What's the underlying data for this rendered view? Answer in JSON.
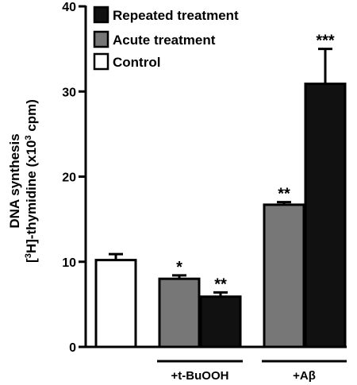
{
  "chart_data": {
    "type": "bar",
    "ylabel_line1": "DNA synthesis",
    "ylabel_line2_pre": "[",
    "ylabel_line2_sup1": "3",
    "ylabel_line2_mid": "H]-thymidine (x10",
    "ylabel_line2_sup2": "3",
    "ylabel_line2_post": " cpm)",
    "ylim": [
      0,
      40
    ],
    "yticks": [
      "0",
      "10",
      "20",
      "30",
      "40"
    ],
    "groups": [
      {
        "label": ""
      },
      {
        "label": "+t-BuOOH"
      },
      {
        "label": "+Aβ"
      }
    ],
    "series": [
      {
        "name": "Repeated treatment",
        "color": "#111111"
      },
      {
        "name": "Acute treatment",
        "color": "#777777"
      },
      {
        "name": "Control",
        "color": "#ffffff"
      }
    ],
    "bars": [
      {
        "group": 0,
        "series": "Control",
        "value": 10.2,
        "error": 0.7,
        "annotation": ""
      },
      {
        "group": 1,
        "series": "Acute treatment",
        "value": 8.0,
        "error": 0.4,
        "annotation": "*"
      },
      {
        "group": 1,
        "series": "Repeated treatment",
        "value": 5.9,
        "error": 0.5,
        "annotation": "**"
      },
      {
        "group": 2,
        "series": "Acute treatment",
        "value": 16.7,
        "error": 0.3,
        "annotation": "**"
      },
      {
        "group": 2,
        "series": "Repeated treatment",
        "value": 30.9,
        "error": 4.1,
        "annotation": "***"
      }
    ],
    "legend_position": "top-left",
    "grid": false
  }
}
